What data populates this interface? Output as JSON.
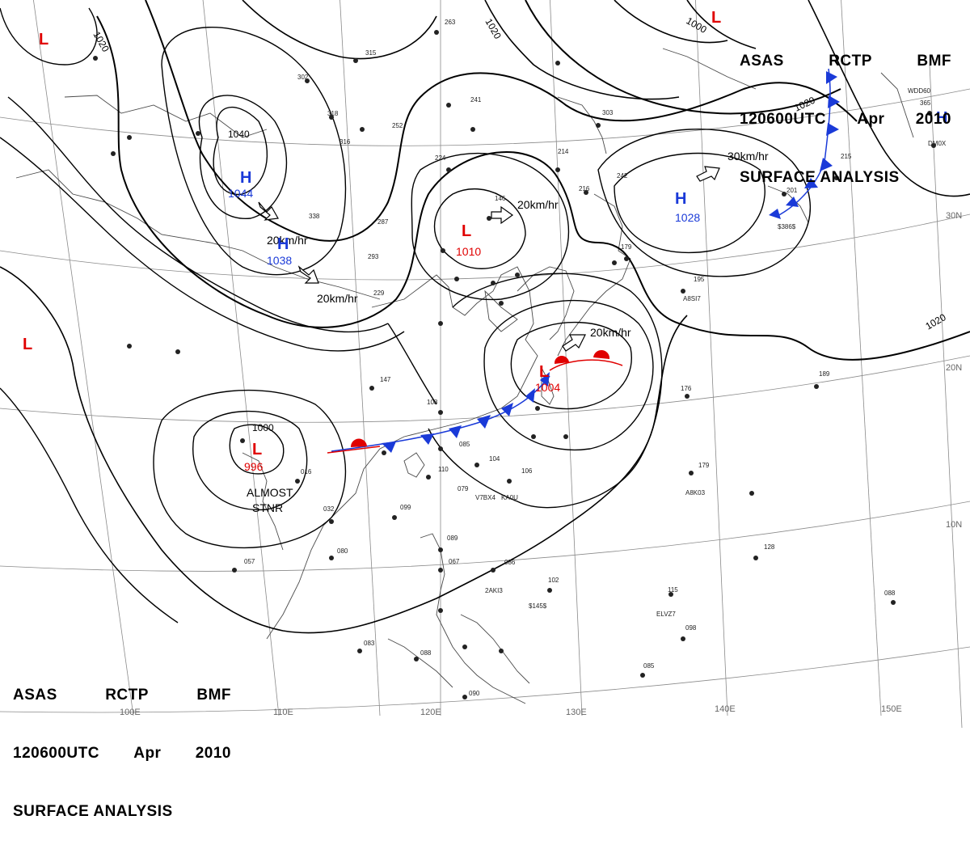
{
  "header": {
    "line1": [
      "ASAS",
      "RCTP",
      "BMF"
    ],
    "line2": [
      "120600UTC",
      "Apr",
      "2010"
    ],
    "line3": "SURFACE ANALYSIS"
  },
  "pressure_systems": [
    {
      "type": "L",
      "value": "",
      "color": "#e00000"
    },
    {
      "type": "L",
      "value": "",
      "color": "#e00000"
    },
    {
      "type": "L",
      "value": "",
      "color": "#e00000"
    },
    {
      "type": "H",
      "value": "1044",
      "color": "#1a3ad8"
    },
    {
      "type": "H",
      "value": "1038",
      "color": "#1a3ad8"
    },
    {
      "type": "L",
      "value": "1010",
      "color": "#e00000"
    },
    {
      "type": "H",
      "value": "1028",
      "color": "#1a3ad8"
    },
    {
      "type": "L",
      "value": "1004",
      "color": "#e00000"
    },
    {
      "type": "L",
      "value": "996",
      "color": "#e00000"
    },
    {
      "type": "H",
      "value": "",
      "color": "#1a3ad8"
    }
  ],
  "isobar_labels": [
    "1020",
    "1020",
    "1000",
    "1040",
    "1020",
    "1020",
    "1000"
  ],
  "motion_labels": [
    "20km/hr",
    "20km/hr",
    "20km/hr",
    "30km/hr",
    "20km/hr"
  ],
  "status_label": [
    "ALMOST",
    "STNR"
  ],
  "lon_labels": [
    "100E",
    "110E",
    "120E",
    "130E",
    "140E",
    "150E"
  ],
  "lat_labels": [
    "30N",
    "20N",
    "10N"
  ],
  "station_codes": [
    "A8SI7",
    "A8K03",
    "ELVZ7",
    "2AKI3",
    "$145$",
    "V7BX4",
    "KA0U",
    "$386$",
    "WDD60",
    "DM0X"
  ],
  "station_numbers": [
    "315",
    "302",
    "318",
    "252",
    "241",
    "263",
    "224",
    "214",
    "216",
    "242",
    "146",
    "338",
    "316",
    "287",
    "293",
    "229",
    "147",
    "108",
    "085",
    "104",
    "106",
    "110",
    "079",
    "099",
    "032",
    "016",
    "057",
    "080",
    "089",
    "067",
    "086",
    "102",
    "115",
    "098",
    "085",
    "088",
    "176",
    "189",
    "179",
    "128",
    "195",
    "179",
    "303",
    "365",
    "215",
    "201",
    "083",
    "088",
    "090"
  ],
  "colors": {
    "cold_front": "#1a3ad8",
    "warm_front": "#e00000",
    "high": "#1a3ad8",
    "low": "#e00000",
    "isobar": "#000000",
    "geography": "#555555",
    "grid": "#888888"
  }
}
